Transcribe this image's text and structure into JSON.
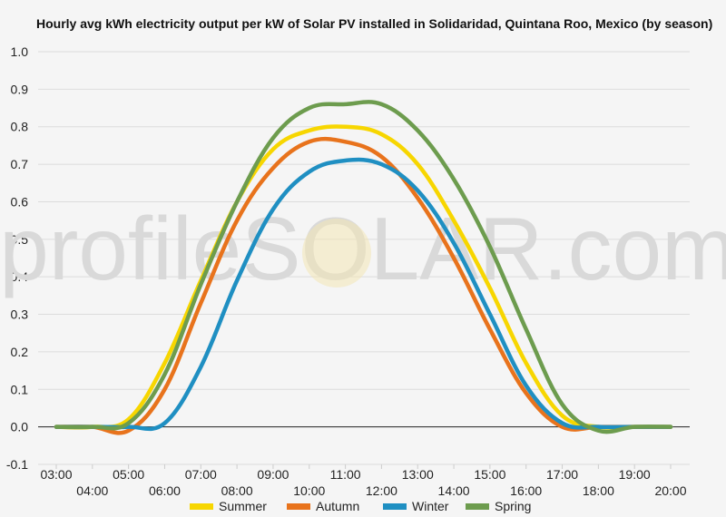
{
  "chart_data": {
    "type": "line",
    "title": "Hourly avg kWh electricity output per kW of Solar PV installed in Solidaridad, Quintana Roo, Mexico (by season)",
    "xlabel": "",
    "ylabel": "",
    "x": [
      "03:00",
      "04:00",
      "05:00",
      "06:00",
      "07:00",
      "08:00",
      "09:00",
      "10:00",
      "11:00",
      "12:00",
      "13:00",
      "14:00",
      "15:00",
      "16:00",
      "17:00",
      "18:00",
      "19:00",
      "20:00"
    ],
    "ylim": [
      -0.1,
      1.0
    ],
    "yticks": [
      "-0.1",
      "0.0",
      "0.1",
      "0.2",
      "0.3",
      "0.4",
      "0.5",
      "0.6",
      "0.7",
      "0.8",
      "0.9",
      "1.0"
    ],
    "grid": true,
    "legend_position": "bottom",
    "series": [
      {
        "name": "Summer",
        "color": "#f7d600",
        "values": [
          0.0,
          0.0,
          0.02,
          0.17,
          0.39,
          0.6,
          0.74,
          0.79,
          0.8,
          0.78,
          0.7,
          0.55,
          0.37,
          0.17,
          0.03,
          0.0,
          0.0,
          0.0
        ]
      },
      {
        "name": "Autumn",
        "color": "#e8731c",
        "values": [
          0.0,
          0.0,
          -0.01,
          0.1,
          0.33,
          0.55,
          0.69,
          0.76,
          0.76,
          0.72,
          0.61,
          0.45,
          0.26,
          0.09,
          0.0,
          0.0,
          0.0,
          0.0
        ]
      },
      {
        "name": "Winter",
        "color": "#1f8fc2",
        "values": [
          0.0,
          0.0,
          0.0,
          0.01,
          0.16,
          0.39,
          0.58,
          0.68,
          0.71,
          0.7,
          0.63,
          0.49,
          0.3,
          0.11,
          0.01,
          0.0,
          0.0,
          0.0
        ]
      },
      {
        "name": "Spring",
        "color": "#6d9c4e",
        "values": [
          0.0,
          0.0,
          0.01,
          0.14,
          0.38,
          0.6,
          0.77,
          0.85,
          0.86,
          0.86,
          0.79,
          0.66,
          0.48,
          0.26,
          0.06,
          -0.01,
          0.0,
          0.0
        ]
      }
    ]
  },
  "watermark": "profileSOLAR.com"
}
